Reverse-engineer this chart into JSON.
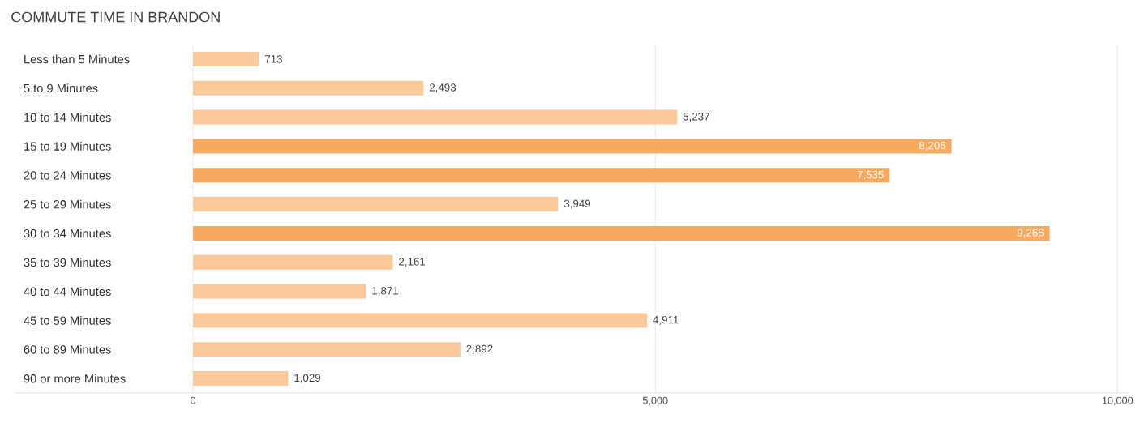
{
  "chart_data": {
    "type": "bar",
    "orientation": "horizontal",
    "title": "COMMUTE TIME IN BRANDON",
    "categories": [
      "Less than 5 Minutes",
      "5 to 9 Minutes",
      "10 to 14 Minutes",
      "15 to 19 Minutes",
      "20 to 24 Minutes",
      "25 to 29 Minutes",
      "30 to 34 Minutes",
      "35 to 39 Minutes",
      "40 to 44 Minutes",
      "45 to 59 Minutes",
      "60 to 89 Minutes",
      "90 or more Minutes"
    ],
    "values": [
      713,
      2493,
      5237,
      8205,
      7535,
      3949,
      9266,
      2161,
      1871,
      4911,
      2892,
      1029
    ],
    "value_labels": [
      "713",
      "2,493",
      "5,237",
      "8,205",
      "7,535",
      "3,949",
      "9,266",
      "2,161",
      "1,871",
      "4,911",
      "2,892",
      "1,029"
    ],
    "colors": [
      "#fbc99a",
      "#fbc99a",
      "#fbc99a",
      "#f6a961",
      "#f6a961",
      "#fbc99a",
      "#f6a961",
      "#fbc99a",
      "#fbc99a",
      "#fbc99a",
      "#fbc99a",
      "#fbc99a"
    ],
    "xlim": [
      -1930,
      10120
    ],
    "xticks": [
      {
        "value": 0,
        "label": "0"
      },
      {
        "value": 5000,
        "label": "5,000"
      },
      {
        "value": 10000,
        "label": "10,000"
      }
    ],
    "grid": "x"
  }
}
